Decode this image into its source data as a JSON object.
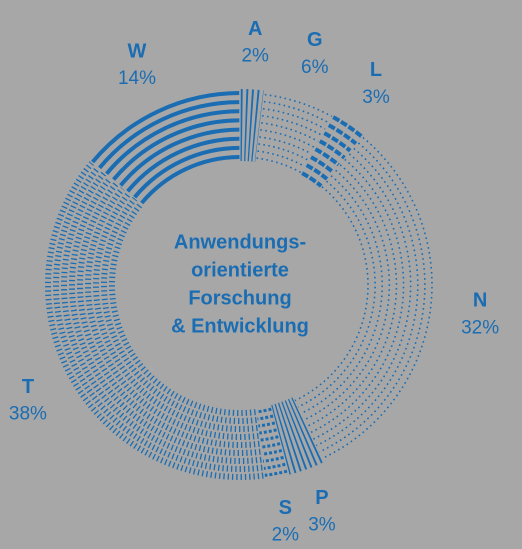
{
  "chart_data": {
    "type": "donut",
    "categories": [
      "A",
      "G",
      "L",
      "N",
      "P",
      "S",
      "T",
      "W"
    ],
    "values": [
      2,
      6,
      3,
      32,
      3,
      2,
      38,
      14
    ],
    "value_labels": [
      "2%",
      "6%",
      "3%",
      "32%",
      "3%",
      "2%",
      "38%",
      "14%"
    ],
    "center_label": [
      "Anwendungs-",
      "orientierte",
      "Forschung",
      "& Entwicklung"
    ],
    "color": "#1a6db3"
  }
}
